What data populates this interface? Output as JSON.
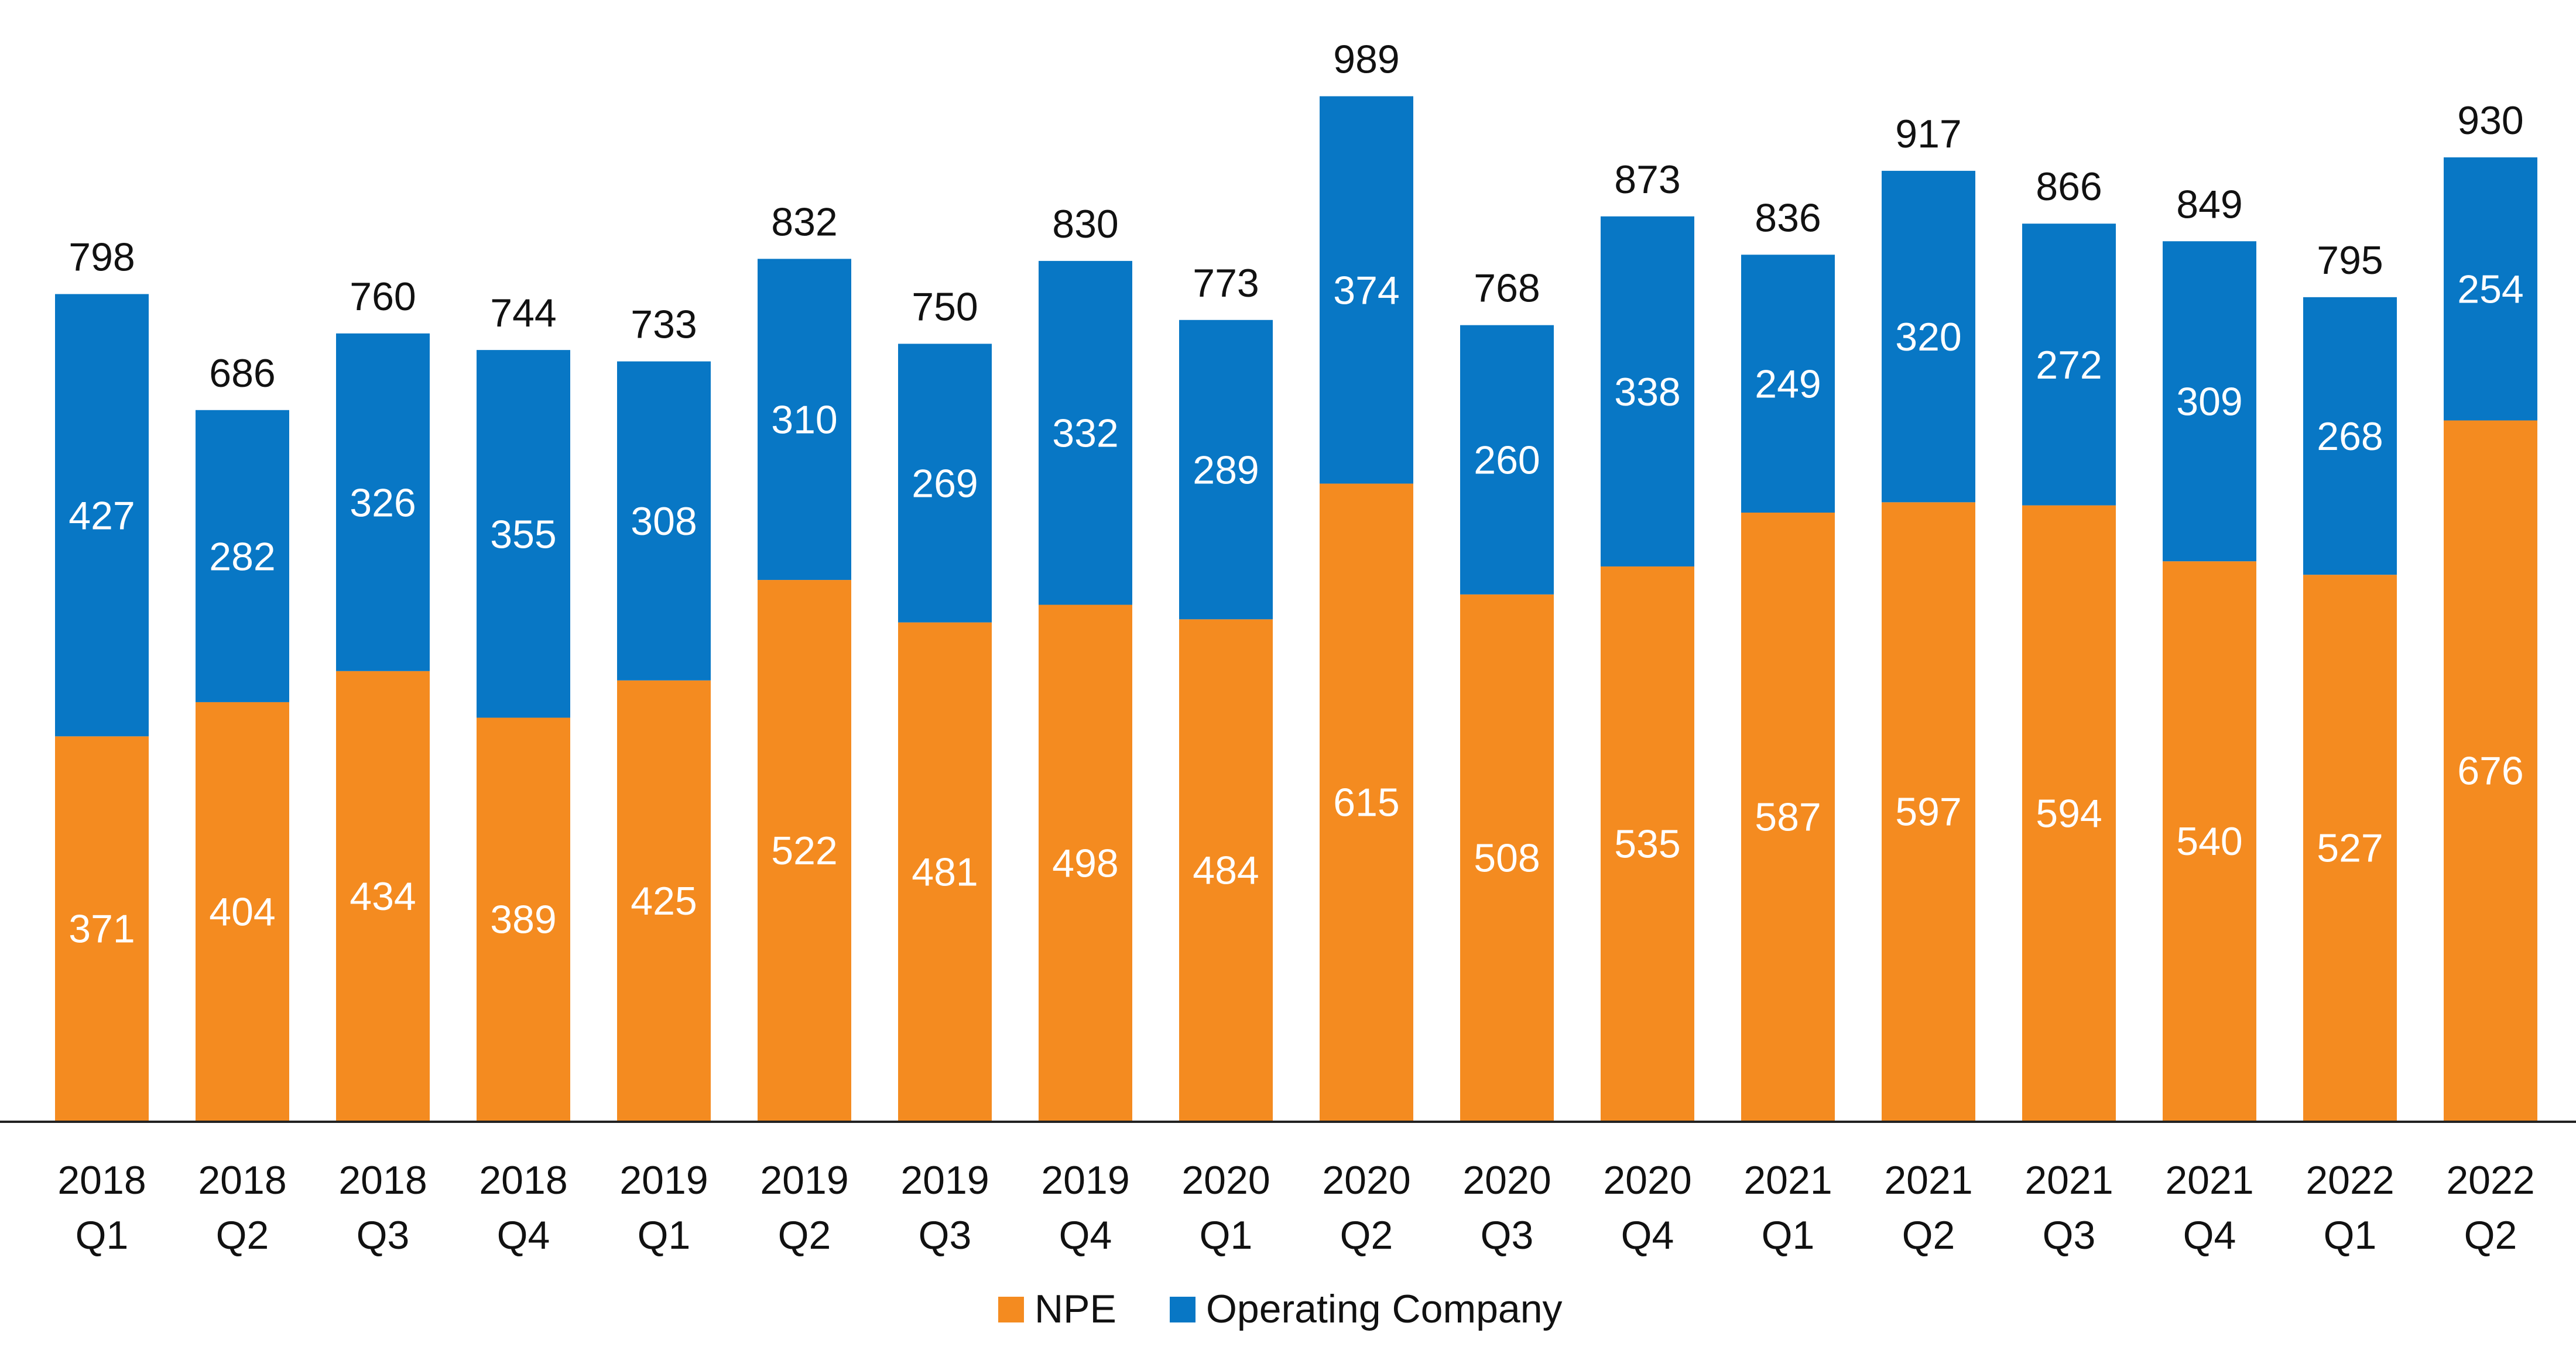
{
  "chart_data": {
    "type": "bar",
    "stacked": true,
    "categories": [
      [
        "2018",
        "Q1"
      ],
      [
        "2018",
        "Q2"
      ],
      [
        "2018",
        "Q3"
      ],
      [
        "2018",
        "Q4"
      ],
      [
        "2019",
        "Q1"
      ],
      [
        "2019",
        "Q2"
      ],
      [
        "2019",
        "Q3"
      ],
      [
        "2019",
        "Q4"
      ],
      [
        "2020",
        "Q1"
      ],
      [
        "2020",
        "Q2"
      ],
      [
        "2020",
        "Q3"
      ],
      [
        "2020",
        "Q4"
      ],
      [
        "2021",
        "Q1"
      ],
      [
        "2021",
        "Q2"
      ],
      [
        "2021",
        "Q3"
      ],
      [
        "2021",
        "Q4"
      ],
      [
        "2022",
        "Q1"
      ],
      [
        "2022",
        "Q2"
      ]
    ],
    "series": [
      {
        "name": "NPE",
        "color": "#F48B20",
        "values": [
          371,
          404,
          434,
          389,
          425,
          522,
          481,
          498,
          484,
          615,
          508,
          535,
          587,
          597,
          594,
          540,
          527,
          676
        ]
      },
      {
        "name": "Operating Company",
        "color": "#0877C5",
        "values": [
          427,
          282,
          326,
          355,
          308,
          310,
          269,
          332,
          289,
          374,
          260,
          338,
          249,
          320,
          272,
          309,
          268,
          254
        ]
      }
    ],
    "totals": [
      798,
      686,
      760,
      744,
      733,
      832,
      750,
      830,
      773,
      989,
      768,
      873,
      836,
      917,
      866,
      849,
      795,
      930
    ],
    "title": "",
    "xlabel": "",
    "ylabel": "",
    "ylim": [
      0,
      1000
    ],
    "grid": false,
    "y_axis_visible": false,
    "legend_position": "bottom-center"
  }
}
